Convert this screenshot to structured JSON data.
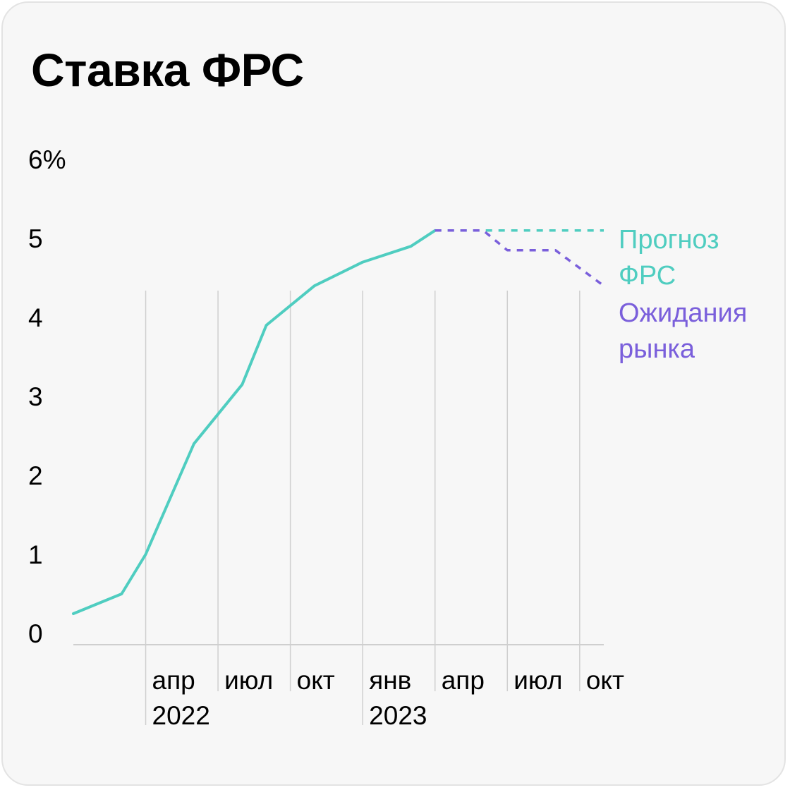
{
  "title": "Ставка ФРС",
  "colors": {
    "fed_forecast": "#4FCDC0",
    "market_expectations": "#7A5FDB",
    "axis": "#cfcfcf",
    "text": "#000000",
    "background": "#f7f7f7"
  },
  "chart_data": {
    "type": "line",
    "title": "Ставка ФРС",
    "ylabel": "",
    "xlabel": "",
    "ylim": [
      0,
      6
    ],
    "y_ticks": [
      {
        "value": 0,
        "label": "0"
      },
      {
        "value": 1,
        "label": "1"
      },
      {
        "value": 2,
        "label": "2"
      },
      {
        "value": 3,
        "label": "3"
      },
      {
        "value": 4,
        "label": "4"
      },
      {
        "value": 5,
        "label": "5"
      },
      {
        "value": 6,
        "label": "6%"
      }
    ],
    "x_range": [
      "2022-01",
      "2023-11"
    ],
    "x_ticks": [
      {
        "x": "2022-04",
        "label": "апр",
        "year": "2022"
      },
      {
        "x": "2022-07",
        "label": "июл",
        "year": ""
      },
      {
        "x": "2022-10",
        "label": "окт",
        "year": ""
      },
      {
        "x": "2023-01",
        "label": "янв",
        "year": "2023"
      },
      {
        "x": "2023-04",
        "label": "апр",
        "year": ""
      },
      {
        "x": "2023-07",
        "label": "июл",
        "year": ""
      },
      {
        "x": "2023-10",
        "label": "окт",
        "year": ""
      }
    ],
    "grid": "vertical lines at tick months",
    "series": [
      {
        "name": "Прогноз ФРС",
        "line_label": [
          "Прогноз",
          "ФРС"
        ],
        "style": "solid-then-dashed",
        "color": "#4FCDC0",
        "points": [
          {
            "x": "2022-01",
            "y": 0.25
          },
          {
            "x": "2022-03",
            "y": 0.5
          },
          {
            "x": "2022-04",
            "y": 1.0
          },
          {
            "x": "2022-06",
            "y": 2.4
          },
          {
            "x": "2022-08",
            "y": 3.15
          },
          {
            "x": "2022-09",
            "y": 3.9
          },
          {
            "x": "2022-11",
            "y": 4.4
          },
          {
            "x": "2023-01",
            "y": 4.7
          },
          {
            "x": "2023-03",
            "y": 4.9
          },
          {
            "x": "2023-04",
            "y": 5.1
          }
        ],
        "forecast_points": [
          {
            "x": "2023-04",
            "y": 5.1
          },
          {
            "x": "2023-11",
            "y": 5.1
          }
        ]
      },
      {
        "name": "Ожидания рынка",
        "line_label": [
          "Ожидания",
          "рынка"
        ],
        "style": "dashed",
        "color": "#7A5FDB",
        "points": [
          {
            "x": "2023-04",
            "y": 5.1
          },
          {
            "x": "2023-06",
            "y": 5.1
          },
          {
            "x": "2023-07",
            "y": 4.85
          },
          {
            "x": "2023-09",
            "y": 4.85
          },
          {
            "x": "2023-11",
            "y": 4.4
          }
        ]
      }
    ]
  }
}
